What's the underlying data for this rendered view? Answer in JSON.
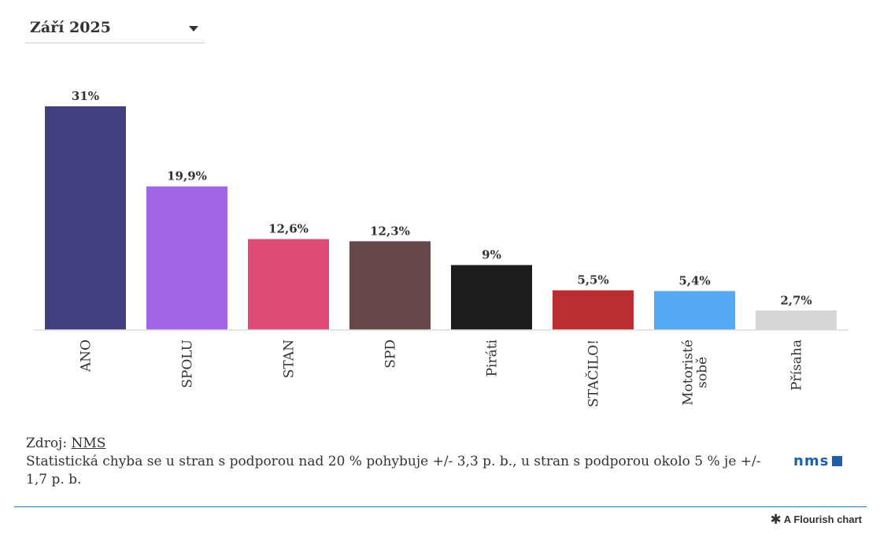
{
  "filter": {
    "selected": "Září 2025"
  },
  "chart_data": {
    "type": "bar",
    "categories": [
      "ANO",
      "SPOLU",
      "STAN",
      "SPD",
      "Piráti",
      "STAČILO!",
      "Motoristé sobě",
      "Přísaha"
    ],
    "category_lines": [
      [
        "ANO"
      ],
      [
        "SPOLU"
      ],
      [
        "STAN"
      ],
      [
        "SPD"
      ],
      [
        "Piráti"
      ],
      [
        "STAČILO!"
      ],
      [
        "Motoristé",
        "sobě"
      ],
      [
        "Přísaha"
      ]
    ],
    "values": [
      31,
      19.9,
      12.6,
      12.3,
      9,
      5.5,
      5.4,
      2.7
    ],
    "value_labels": [
      "31%",
      "19,9%",
      "12,6%",
      "12,3%",
      "9%",
      "5,5%",
      "5,4%",
      "2,7%"
    ],
    "colors": [
      "#433f7e",
      "#a066e6",
      "#df4b77",
      "#66484a",
      "#1c1c1c",
      "#b82e32",
      "#58a9f3",
      "#d6d6d6"
    ],
    "title": "",
    "xlabel": "",
    "ylabel": "",
    "ylim": [
      0,
      31
    ],
    "grid": false,
    "legend": "none"
  },
  "footer": {
    "source_prefix": "Zdroj: ",
    "source_link": "NMS",
    "note": "Statistická chyba se u stran s podporou nad 20 % pohybuje +/- 3,3 p. b., u stran s podporou okolo 5 % je +/- 1,7 p. b."
  },
  "logo": {
    "text": "nms"
  },
  "attribution": {
    "icon": "flourish-asterisk-icon",
    "label": "A Flourish chart"
  }
}
